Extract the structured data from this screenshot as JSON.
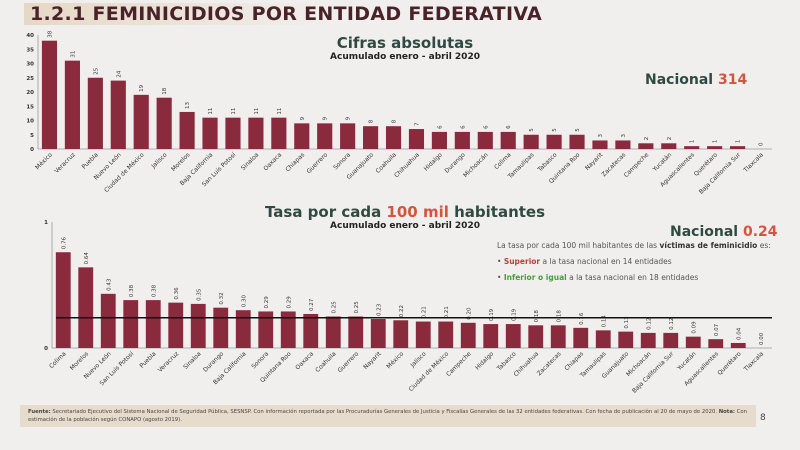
{
  "title": "1.2.1 FEMINICIDIOS POR ENTIDAD FEDERATIVA",
  "colors": {
    "bar": "#8a2a3d",
    "title": "#4a2328",
    "heading": "#2f4a43",
    "accent": "#d2553f"
  },
  "chart_data": [
    {
      "type": "bar",
      "title": "Cifras absolutas",
      "subtitle": "Acumulado enero - abril 2020",
      "national_label": "Nacional",
      "national_value": "314",
      "ylim": [
        0,
        40
      ],
      "yticks": [
        0,
        5,
        10,
        15,
        20,
        25,
        30,
        35,
        40
      ],
      "grid": false,
      "categories": [
        "México",
        "Veracruz",
        "Puebla",
        "Nuevo León",
        "Ciudad de México",
        "Jalisco",
        "Morelos",
        "Baja California",
        "San Luis Potosí",
        "Sinaloa",
        "Oaxaca",
        "Chiapas",
        "Guerrero",
        "Sonora",
        "Guanajuato",
        "Coahuila",
        "Chihuahua",
        "Hidalgo",
        "Durango",
        "Michoacán",
        "Colima",
        "Tamaulipas",
        "Tabasco",
        "Quintana Roo",
        "Nayarit",
        "Zacatecas",
        "Campeche",
        "Yucatán",
        "Aguascalientes",
        "Querétaro",
        "Baja California Sur",
        "Tlaxcala"
      ],
      "values": [
        38,
        31,
        25,
        24,
        19,
        18,
        13,
        11,
        11,
        11,
        11,
        9,
        9,
        9,
        8,
        8,
        7,
        6,
        6,
        6,
        6,
        5,
        5,
        5,
        3,
        3,
        2,
        2,
        1,
        1,
        1,
        0
      ]
    },
    {
      "type": "bar",
      "title_parts": [
        "Tasa por cada ",
        "100 mil",
        " habitantes"
      ],
      "subtitle": "Acumulado enero - abril 2020",
      "national_label": "Nacional",
      "national_value": "0.24",
      "reference_line": 0.24,
      "ylim": [
        0,
        1
      ],
      "yticks": [
        0,
        1
      ],
      "grid": false,
      "categories": [
        "Colima",
        "Morelos",
        "Nuevo León",
        "San Luis Potosí",
        "Puebla",
        "Veracruz",
        "Sinaloa",
        "Durango",
        "Baja California",
        "Sonora",
        "Quintana Roo",
        "Oaxaca",
        "Coahuila",
        "Guerrero",
        "Nayarit",
        "México",
        "Jalisco",
        "Ciudad de México",
        "Campeche",
        "Hidalgo",
        "Tabasco",
        "Chihuahua",
        "Zacatecas",
        "Chiapas",
        "Tamaulipas",
        "Guanajuato",
        "Michoacán",
        "Baja California Sur",
        "Yucatán",
        "Aguascalientes",
        "Querétaro",
        "Tlaxcala"
      ],
      "values": [
        0.76,
        0.64,
        0.43,
        0.38,
        0.38,
        0.36,
        0.35,
        0.32,
        0.3,
        0.29,
        0.29,
        0.27,
        0.25,
        0.25,
        0.23,
        0.22,
        0.21,
        0.21,
        0.2,
        0.19,
        0.19,
        0.18,
        0.18,
        0.16,
        0.14,
        0.13,
        0.12,
        0.12,
        0.09,
        0.07,
        0.04,
        0.0
      ]
    }
  ],
  "note": {
    "intro": "La tasa por cada 100 mil habitantes de las ",
    "intro_bold": "víctimas de feminicidio",
    "intro_end": " es:",
    "bullet1_bold": "Superior",
    "bullet1": " a la tasa nacional en 14 entidades",
    "bullet2_bold": "Inferior o igual",
    "bullet2": " a la tasa nacional en 18 entidades"
  },
  "footer": {
    "fuente_label": "Fuente:",
    "fuente": " Secretariado Ejecutivo del Sistema Nacional de Seguridad Pública, SESNSP. Con información reportada por las Procuradurías Generales de Justicia y Fiscalías Generales de las 32 entidades federativas. Con fecha de publicación al 20 de mayo de 2020. ",
    "nota_label": "Nota:",
    "nota": " Con estimación de la población según CONAPO (agosto 2019)."
  },
  "page_number": "8"
}
